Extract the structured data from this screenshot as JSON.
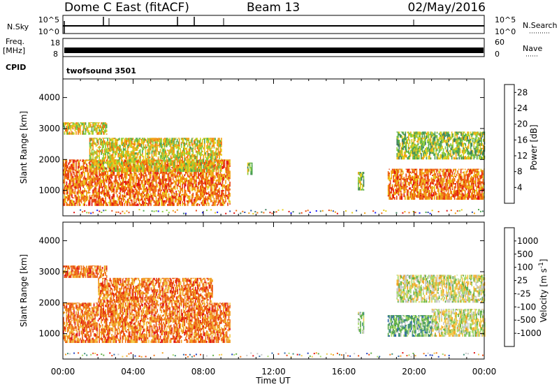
{
  "header": {
    "station": "Dome C East (fitACF)",
    "beam": "Beam 13",
    "date": "02/May/2016"
  },
  "top_panels": {
    "sky_label": "N.Sky",
    "sky_ticks": [
      "10^5",
      "10^0"
    ],
    "search_label": "N.Search",
    "search_ticks": [
      "10^5",
      "10^0"
    ],
    "freq_label_1": "Freq.",
    "freq_label_2": "[MHz]",
    "freq_ticks": [
      "18",
      "8"
    ],
    "nave_label": "Nave",
    "nave_ticks": [
      "60",
      "0"
    ],
    "cpid_label": "CPID",
    "cpid_name": "twofsound 3501"
  },
  "colors": {
    "power_scale": [
      "#1a1aff",
      "#2a4fa8",
      "#3f7f5f",
      "#4fa64f",
      "#8ccd3a",
      "#e6cc1a",
      "#f2a010",
      "#f07010",
      "#e84410",
      "#e01010"
    ],
    "velocity_scale": [
      "#1f3fbf",
      "#2f68a8",
      "#3f8f7a",
      "#5fae47",
      "#a6d86a",
      "#c8c8c8",
      "#f2c94c",
      "#f0a020",
      "#f07518",
      "#e84a12",
      "#e01515"
    ]
  },
  "chart_data": [
    {
      "type": "heatmap",
      "name": "power",
      "xlabel": "Time UT",
      "ylabel": "Slant Range [km]",
      "xlim": [
        0,
        24
      ],
      "ylim": [
        180,
        4600
      ],
      "xticks": [
        "00:00",
        "04:00",
        "08:00",
        "12:00",
        "16:00",
        "20:00",
        "00:00"
      ],
      "yticks": [
        1000,
        2000,
        3000,
        4000
      ],
      "colorbar_label": "Power [dB]",
      "colorbar_ticks": [
        4,
        8,
        12,
        16,
        20,
        24,
        28
      ],
      "colorbar_range": [
        0,
        30
      ],
      "regions": [
        {
          "t": [
            0.0,
            9.5
          ],
          "r": [
            500,
            2000
          ],
          "value": 22
        },
        {
          "t": [
            0.0,
            2.5
          ],
          "r": [
            2800,
            3200
          ],
          "value": 18
        },
        {
          "t": [
            1.5,
            9.0
          ],
          "r": [
            1600,
            2700
          ],
          "value": 15
        },
        {
          "t": [
            10.5,
            10.8
          ],
          "r": [
            1500,
            1900
          ],
          "value": 14
        },
        {
          "t": [
            16.8,
            17.1
          ],
          "r": [
            1000,
            1600
          ],
          "value": 14
        },
        {
          "t": [
            18.5,
            24.0
          ],
          "r": [
            700,
            1700
          ],
          "value": 22
        },
        {
          "t": [
            19.0,
            24.0
          ],
          "r": [
            2000,
            2900
          ],
          "value": 12
        }
      ]
    },
    {
      "type": "heatmap",
      "name": "velocity",
      "xlabel": "Time UT",
      "ylabel": "Slant Range [km]",
      "xlim": [
        0,
        24
      ],
      "ylim": [
        180,
        4600
      ],
      "xticks": [
        "00:00",
        "04:00",
        "08:00",
        "12:00",
        "16:00",
        "20:00",
        "00:00"
      ],
      "yticks": [
        1000,
        2000,
        3000,
        4000
      ],
      "colorbar_label": "Velocity [m s^-1]",
      "colorbar_ticks": [
        "1000",
        "500",
        "100",
        "25",
        "-25",
        "-100",
        "-500",
        "-1000"
      ],
      "regions": [
        {
          "t": [
            0.0,
            9.5
          ],
          "r": [
            700,
            2000
          ],
          "value": -200
        },
        {
          "t": [
            0.0,
            2.5
          ],
          "r": [
            2800,
            3200
          ],
          "value": -100
        },
        {
          "t": [
            2.0,
            8.5
          ],
          "r": [
            2000,
            2800
          ],
          "value": -300
        },
        {
          "t": [
            16.8,
            17.1
          ],
          "r": [
            1000,
            1700
          ],
          "value": 300
        },
        {
          "t": [
            18.5,
            21.0
          ],
          "r": [
            900,
            1600
          ],
          "value": 600
        },
        {
          "t": [
            21.0,
            24.0
          ],
          "r": [
            900,
            1800
          ],
          "value": 80
        },
        {
          "t": [
            19.0,
            24.0
          ],
          "r": [
            2000,
            2900
          ],
          "value": 50
        }
      ]
    }
  ]
}
